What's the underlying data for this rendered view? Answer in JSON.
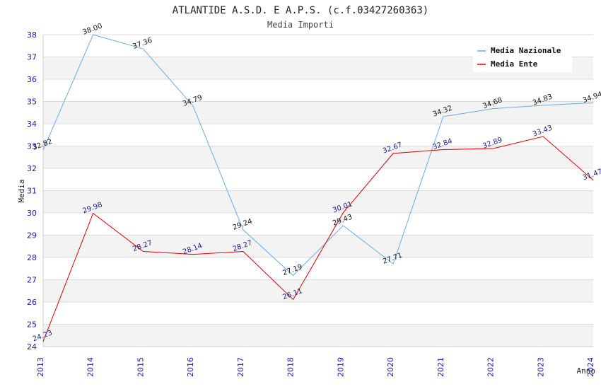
{
  "chart_data": {
    "type": "line",
    "title": "ATLANTIDE A.S.D. E A.P.S. (c.f.03427260363)",
    "subtitle": "Media Importi",
    "xlabel": "Anno",
    "ylabel": "Media",
    "categories": [
      "2013",
      "2014",
      "2015",
      "2016",
      "2017",
      "2018",
      "2019",
      "2020",
      "2021",
      "2022",
      "2023",
      "2024"
    ],
    "ylim": [
      24,
      38
    ],
    "yticks": [
      24,
      25,
      26,
      27,
      28,
      29,
      30,
      31,
      32,
      33,
      34,
      35,
      36,
      37,
      38
    ],
    "legend_position": "top-right",
    "series": [
      {
        "name": "Media Nazionale",
        "color": "#6aaae8",
        "values": [
          32.82,
          38.0,
          37.36,
          34.79,
          29.24,
          27.19,
          29.43,
          27.71,
          34.32,
          34.68,
          34.83,
          34.94
        ],
        "labels": [
          "32.82",
          "38.00",
          "37.36",
          "34.79",
          "29.24",
          "27.19",
          "29.43",
          "27.71",
          "34.32",
          "34.68",
          "34.83",
          "34.94"
        ]
      },
      {
        "name": "Media Ente",
        "color": "#dd0000",
        "values": [
          24.23,
          29.98,
          28.27,
          28.14,
          28.27,
          26.11,
          30.01,
          32.67,
          32.84,
          32.89,
          33.43,
          31.47
        ],
        "labels": [
          "24.23",
          "29.98",
          "28.27",
          "28.14",
          "28.27",
          "26.11",
          "30.01",
          "32.67",
          "32.84",
          "32.89",
          "33.43",
          "31.47"
        ]
      }
    ]
  }
}
